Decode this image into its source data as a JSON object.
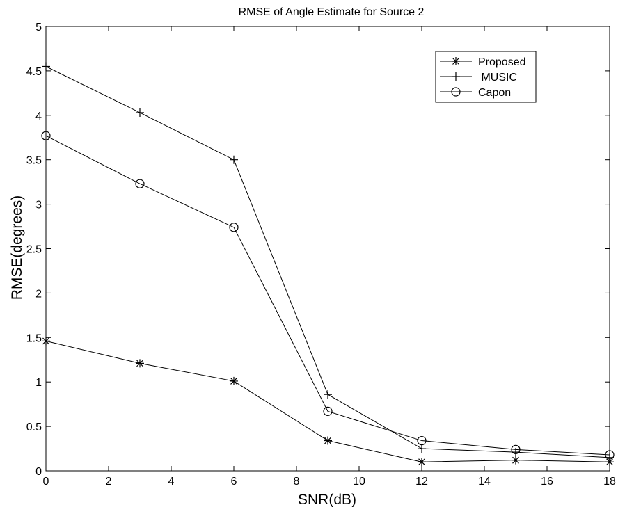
{
  "chart_data": {
    "type": "line",
    "title": "RMSE of Angle Estimate for Source 2",
    "xlabel": "SNR(dB)",
    "ylabel": "RMSE(degrees)",
    "x": [
      0,
      3,
      6,
      9,
      12,
      15,
      18
    ],
    "xlim": [
      0,
      18
    ],
    "ylim": [
      0,
      5
    ],
    "xticks": [
      0,
      2,
      4,
      6,
      8,
      10,
      12,
      14,
      16,
      18
    ],
    "yticks": [
      0,
      0.5,
      1,
      1.5,
      2,
      2.5,
      3,
      3.5,
      4,
      4.5,
      5
    ],
    "grid": false,
    "legend_position": "top-right",
    "series": [
      {
        "name": "Proposed",
        "marker": "asterisk",
        "values": [
          1.46,
          1.21,
          1.01,
          0.34,
          0.1,
          0.12,
          0.1
        ]
      },
      {
        "name": " MUSIC",
        "marker": "plus",
        "values": [
          4.55,
          4.03,
          3.5,
          0.86,
          0.25,
          0.21,
          0.15
        ]
      },
      {
        "name": "Capon",
        "marker": "circle",
        "values": [
          3.77,
          3.23,
          2.74,
          0.67,
          0.34,
          0.24,
          0.18
        ]
      }
    ]
  }
}
